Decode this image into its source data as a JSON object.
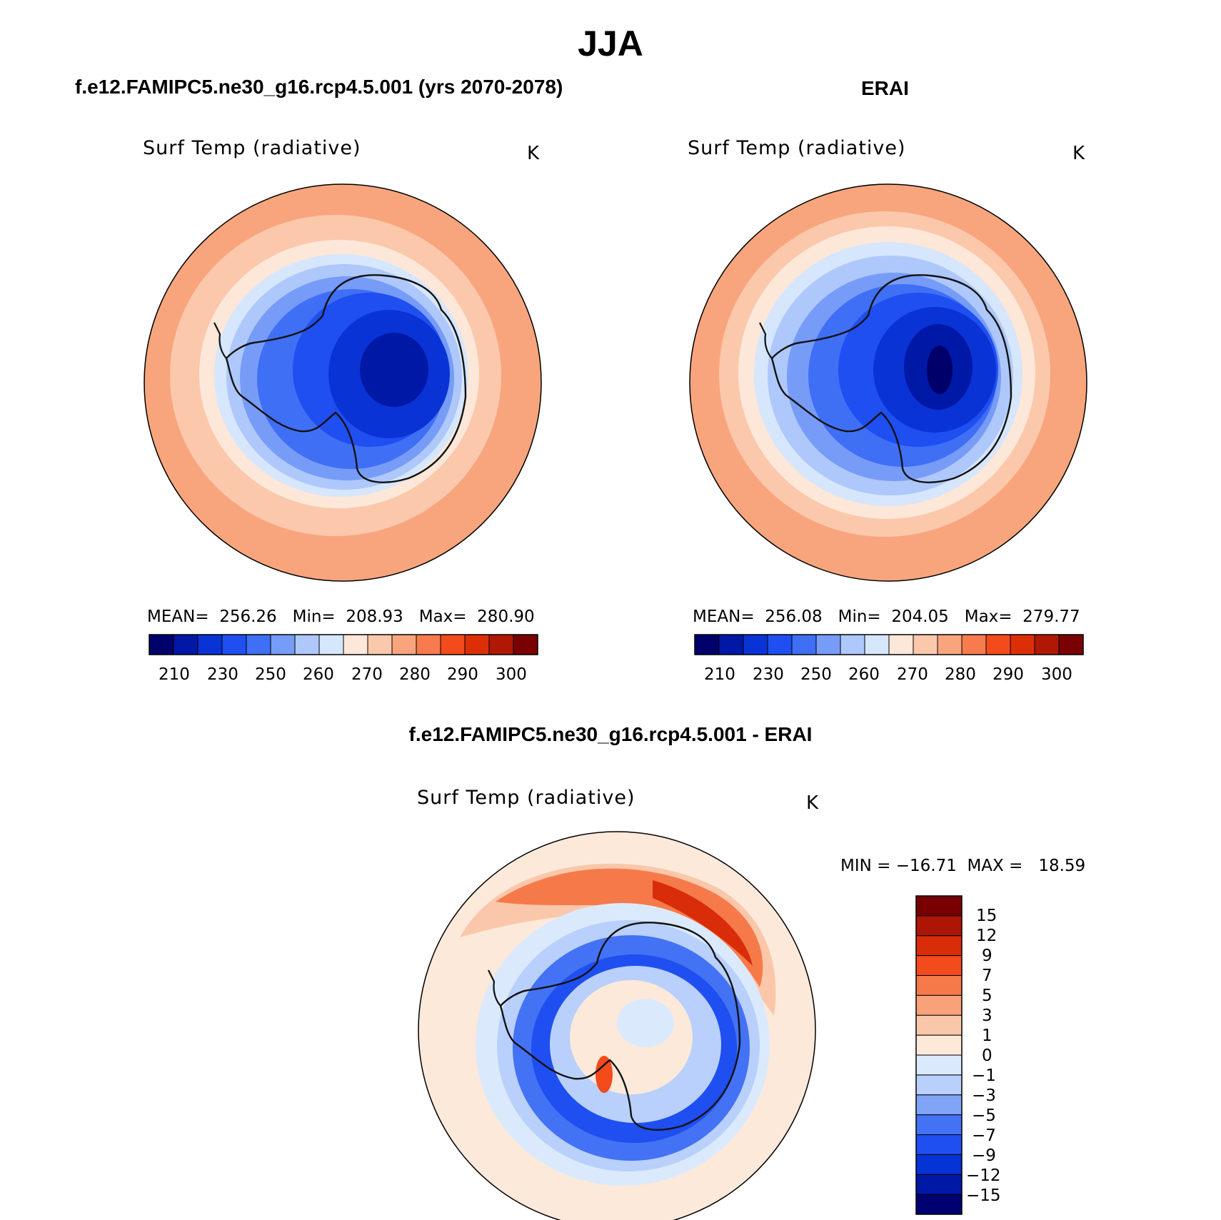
{
  "title": "JJA",
  "colors": {
    "abs_scale": [
      "#00006b",
      "#0018a6",
      "#0a33d6",
      "#1f4ff0",
      "#3f6ff5",
      "#779cf8",
      "#aec8fb",
      "#d6e6fc",
      "#fde7d8",
      "#fbc8ac",
      "#f8a57d",
      "#f77b4e",
      "#f44b1c",
      "#dc2f08",
      "#b01804",
      "#7a0103"
    ],
    "diff_scale": [
      "#000070",
      "#0018a6",
      "#0433d6",
      "#1f4ff0",
      "#4372f4",
      "#80a4f8",
      "#b8d0fb",
      "#daeafc",
      "#fde9da",
      "#fbc7aa",
      "#f8a27a",
      "#f6794a",
      "#f34b1c",
      "#d92c08",
      "#ad1604",
      "#780003"
    ],
    "coastline": "#111111"
  },
  "panels": {
    "model": {
      "title": "f.e12.FAMIPC5.ne30_g16.rcp4.5.001 (yrs 2070-2078)",
      "variable": "Surf Temp (radiative)",
      "units": "K",
      "stats": "MEAN=  256.26   Min=  208.93   Max=  280.90"
    },
    "obs": {
      "title": "ERAI",
      "variable": "Surf Temp (radiative)",
      "units": "K",
      "stats": "MEAN=  256.08   Min=  204.05   Max=  279.77"
    },
    "diff": {
      "title": "f.e12.FAMIPC5.ne30_g16.rcp4.5.001 - ERAI",
      "variable": "Surf Temp (radiative)",
      "units": "K",
      "stats": "MIN = −16.71  MAX =   18.59"
    }
  },
  "abs_colorbar_ticks": [
    "210",
    "230",
    "250",
    "260",
    "270",
    "280",
    "290",
    "300"
  ],
  "diff_colorbar_ticks": [
    "15",
    "12",
    "9",
    "7",
    "5",
    "3",
    "1",
    "0",
    "−1",
    "−3",
    "−5",
    "−7",
    "−9",
    "−12",
    "−15"
  ]
}
